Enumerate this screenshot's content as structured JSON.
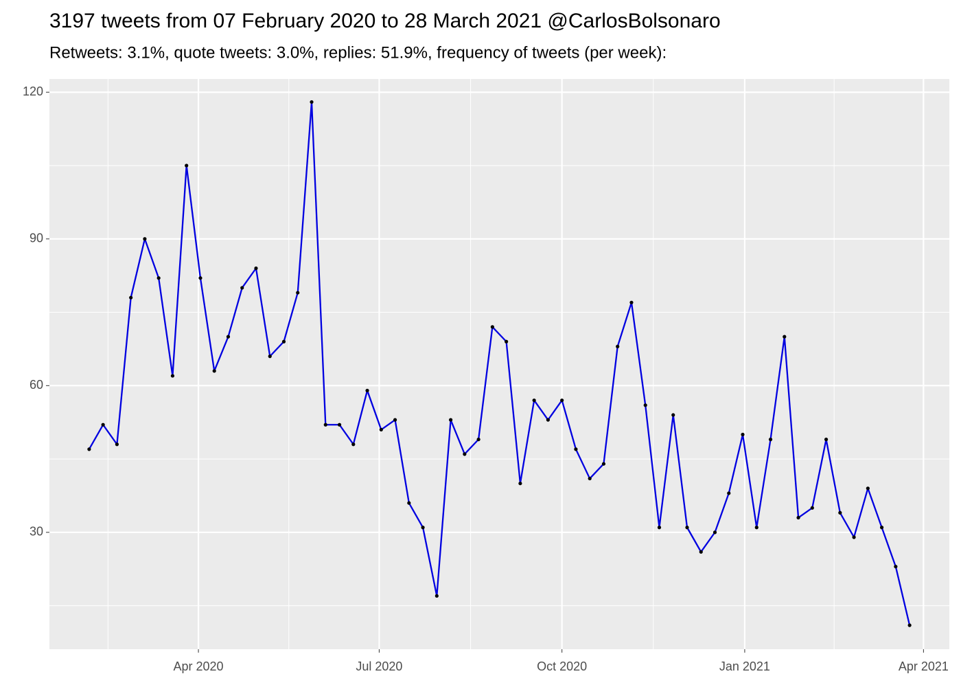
{
  "chart_data": {
    "type": "line",
    "title": "3197 tweets from 07 February 2020 to 28 March 2021 @CarlosBolsonaro",
    "subtitle": "Retweets: 3.1%, quote tweets: 3.0%, replies: 51.9%, frequency of tweets (per week):",
    "x": [
      "2020-02-06",
      "2020-02-13",
      "2020-02-20",
      "2020-02-27",
      "2020-03-05",
      "2020-03-12",
      "2020-03-19",
      "2020-03-26",
      "2020-04-02",
      "2020-04-09",
      "2020-04-16",
      "2020-04-23",
      "2020-04-30",
      "2020-05-07",
      "2020-05-14",
      "2020-05-21",
      "2020-05-28",
      "2020-06-04",
      "2020-06-11",
      "2020-06-18",
      "2020-06-25",
      "2020-07-02",
      "2020-07-09",
      "2020-07-16",
      "2020-07-23",
      "2020-07-30",
      "2020-08-06",
      "2020-08-13",
      "2020-08-20",
      "2020-08-27",
      "2020-09-03",
      "2020-09-10",
      "2020-09-17",
      "2020-09-24",
      "2020-10-01",
      "2020-10-08",
      "2020-10-15",
      "2020-10-22",
      "2020-10-29",
      "2020-11-05",
      "2020-11-12",
      "2020-11-19",
      "2020-11-26",
      "2020-12-03",
      "2020-12-10",
      "2020-12-17",
      "2020-12-24",
      "2020-12-31",
      "2021-01-07",
      "2021-01-14",
      "2021-01-21",
      "2021-01-28",
      "2021-02-04",
      "2021-02-11",
      "2021-02-18",
      "2021-02-25",
      "2021-03-04",
      "2021-03-11",
      "2021-03-18",
      "2021-03-25"
    ],
    "series": [
      {
        "color": "#0000e0",
        "point_color": "#000000",
        "values": [
          47,
          52,
          48,
          78,
          90,
          82,
          62,
          105,
          82,
          63,
          70,
          80,
          84,
          66,
          69,
          79,
          118,
          52,
          52,
          48,
          59,
          51,
          53,
          36,
          31,
          17,
          53,
          46,
          49,
          72,
          69,
          40,
          57,
          53,
          57,
          47,
          41,
          44,
          68,
          77,
          56,
          31,
          54,
          31,
          26,
          30,
          38,
          50,
          31,
          49,
          70,
          33,
          35,
          49,
          34,
          29,
          39,
          31,
          23,
          11
        ]
      }
    ],
    "xlim": [
      "2020-01-17",
      "2021-04-14"
    ],
    "xticks": [
      {
        "value": "2020-04-01",
        "label": "Apr 2020"
      },
      {
        "value": "2020-07-01",
        "label": "Jul 2020"
      },
      {
        "value": "2020-10-01",
        "label": "Oct 2020"
      },
      {
        "value": "2021-01-01",
        "label": "Jan 2021"
      },
      {
        "value": "2021-04-01",
        "label": "Apr 2021"
      }
    ],
    "ylim": [
      6.1,
      122.7
    ],
    "yticks": [
      30,
      60,
      90,
      120
    ],
    "grid": true,
    "minor_grid": true,
    "panel_color": "#ebebeb"
  }
}
